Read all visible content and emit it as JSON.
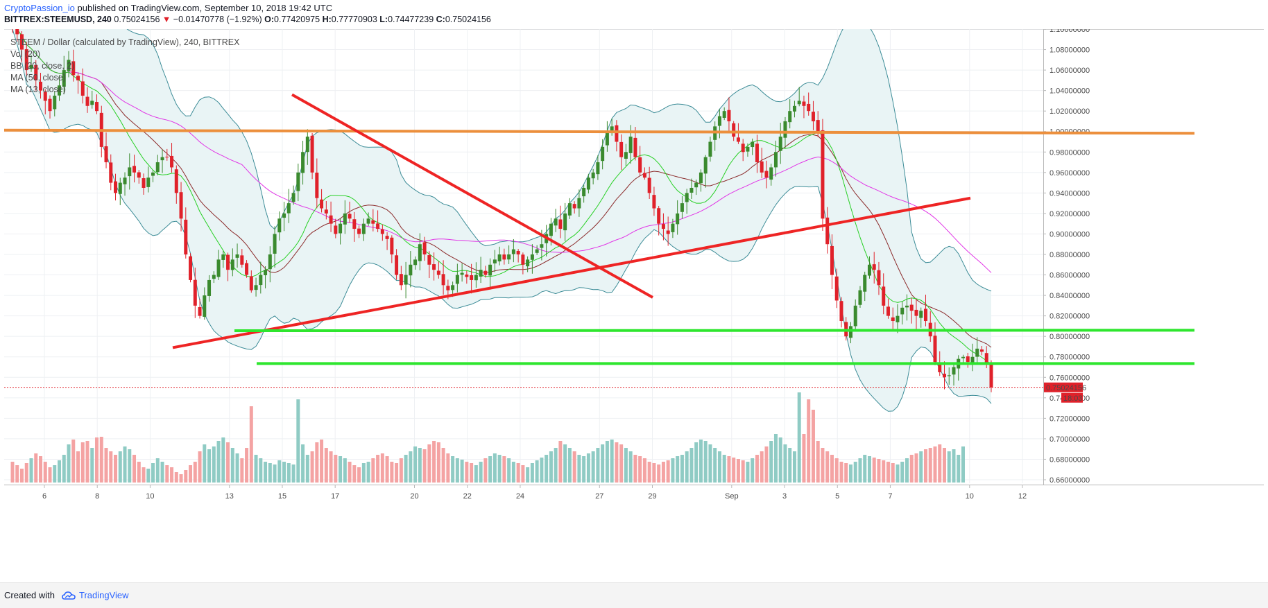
{
  "header": {
    "publisher": "CryptoPassion_io",
    "published_text": " published on TradingView.com, September 10, 2018 19:42 UTC",
    "symbol_line": {
      "symbol": "BITTREX:STEEMUSD, 240",
      "last": "0.75024156",
      "change": "−0.01470778 (−1.92%)",
      "o_label": "O:",
      "o": "0.77420975",
      "h_label": "H:",
      "h": "0.77770903",
      "l_label": "L:",
      "l": "0.74477239",
      "c_label": "C:",
      "c": "0.75024156"
    }
  },
  "legend": {
    "title": "STEEM / Dollar (calculated by TradingView), 240, BITTREX",
    "studies": [
      "Vol (20)",
      "BB (20, close, 2)",
      "MA (50, close)",
      "MA (13, close)"
    ]
  },
  "footer": {
    "created_with": "Created with",
    "brand": "TradingView"
  },
  "colors": {
    "up": "#3a8a2e",
    "down": "#e0212a",
    "vol_up": "#8fcbc4",
    "vol_down": "#f4a3a3",
    "bb": "#3c8c97",
    "bb_fill": "#e9f4f5",
    "ma50": "#e135e6",
    "ma13": "#27d024",
    "ma20": "#8b2a2a",
    "orange": "#ec8f3c",
    "red_line": "#ee2424",
    "green_line": "#2ee62e"
  },
  "chart_data": {
    "type": "candlestick",
    "title": "STEEM / Dollar (calculated by TradingView), 240, BITTREX",
    "price_axis": {
      "labels": [
        "1.10000000",
        "1.08000000",
        "1.06000000",
        "1.04000000",
        "1.02000000",
        "1.00000000",
        "0.98000000",
        "0.96000000",
        "0.94000000",
        "0.92000000",
        "0.90000000",
        "0.88000000",
        "0.86000000",
        "0.84000000",
        "0.82000000",
        "0.80000000",
        "0.78000000",
        "0.76000000",
        "0.74000000",
        "0.72000000",
        "0.70000000",
        "0.68000000",
        "0.66000000"
      ],
      "values": [
        1.1,
        1.08,
        1.06,
        1.04,
        1.02,
        1.0,
        0.98,
        0.96,
        0.94,
        0.92,
        0.9,
        0.88,
        0.86,
        0.84,
        0.82,
        0.8,
        0.78,
        0.76,
        0.74,
        0.72,
        0.7,
        0.68,
        0.66
      ],
      "last_price_label": "0.75024156",
      "countdown_label": "18:03"
    },
    "time_axis": {
      "labels": [
        "6",
        "8",
        "10",
        "13",
        "15",
        "17",
        "20",
        "22",
        "24",
        "27",
        "29",
        "Sep",
        "3",
        "5",
        "7",
        "10",
        "12"
      ],
      "days": [
        6,
        8,
        10,
        13,
        15,
        17,
        20,
        22,
        24,
        27,
        29,
        32,
        34,
        36,
        38,
        41,
        43
      ]
    },
    "closes": [
      1.105,
      1.095,
      1.08,
      1.06,
      1.065,
      1.05,
      1.04,
      1.03,
      1.02,
      1.035,
      1.045,
      1.06,
      1.07,
      1.055,
      1.05,
      1.035,
      1.025,
      1.03,
      1.02,
      0.985,
      0.97,
      0.95,
      0.94,
      0.95,
      0.955,
      0.965,
      0.96,
      0.955,
      0.945,
      0.955,
      0.96,
      0.97,
      0.975,
      0.975,
      0.965,
      0.94,
      0.915,
      0.88,
      0.855,
      0.83,
      0.82,
      0.84,
      0.855,
      0.86,
      0.875,
      0.88,
      0.865,
      0.875,
      0.88,
      0.87,
      0.86,
      0.845,
      0.85,
      0.86,
      0.865,
      0.88,
      0.9,
      0.915,
      0.92,
      0.93,
      0.94,
      0.96,
      0.98,
      0.995,
      0.96,
      0.935,
      0.925,
      0.92,
      0.91,
      0.9,
      0.91,
      0.92,
      0.915,
      0.905,
      0.9,
      0.91,
      0.915,
      0.91,
      0.905,
      0.9,
      0.895,
      0.88,
      0.86,
      0.85,
      0.86,
      0.87,
      0.875,
      0.89,
      0.88,
      0.87,
      0.865,
      0.86,
      0.85,
      0.845,
      0.85,
      0.86,
      0.862,
      0.858,
      0.855,
      0.86,
      0.865,
      0.86,
      0.87,
      0.875,
      0.88,
      0.875,
      0.88,
      0.885,
      0.88,
      0.87,
      0.875,
      0.88,
      0.885,
      0.89,
      0.9,
      0.91,
      0.915,
      0.905,
      0.92,
      0.93,
      0.925,
      0.935,
      0.945,
      0.955,
      0.96,
      0.97,
      0.985,
      1.0,
      1.005,
      0.99,
      0.975,
      0.98,
      0.995,
      0.975,
      0.96,
      0.955,
      0.94,
      0.925,
      0.91,
      0.905,
      0.9,
      0.91,
      0.92,
      0.93,
      0.94,
      0.945,
      0.95,
      0.96,
      0.975,
      0.99,
      1.005,
      1.015,
      1.02,
      1.01,
      0.995,
      0.99,
      0.98,
      0.985,
      0.99,
      0.97,
      0.96,
      0.955,
      0.965,
      0.98,
      0.995,
      1.01,
      1.02,
      1.025,
      1.03,
      1.025,
      1.02,
      1.01,
      1.0,
      0.915,
      0.89,
      0.86,
      0.835,
      0.815,
      0.8,
      0.81,
      0.83,
      0.845,
      0.86,
      0.87,
      0.865,
      0.85,
      0.83,
      0.82,
      0.815,
      0.82,
      0.828,
      0.83,
      0.825,
      0.82,
      0.825,
      0.815,
      0.8,
      0.775,
      0.765,
      0.76,
      0.762,
      0.77,
      0.778,
      0.78,
      0.775,
      0.78,
      0.788,
      0.785,
      0.7742,
      0.7502
    ],
    "volumes": [
      0.3,
      0.25,
      0.2,
      0.28,
      0.35,
      0.42,
      0.38,
      0.3,
      0.22,
      0.25,
      0.32,
      0.4,
      0.55,
      0.62,
      0.45,
      0.58,
      0.6,
      0.5,
      0.65,
      0.66,
      0.5,
      0.45,
      0.4,
      0.45,
      0.52,
      0.48,
      0.4,
      0.3,
      0.22,
      0.2,
      0.28,
      0.35,
      0.3,
      0.25,
      0.22,
      0.15,
      0.12,
      0.18,
      0.25,
      0.3,
      0.45,
      0.55,
      0.48,
      0.52,
      0.6,
      0.65,
      0.58,
      0.5,
      0.42,
      0.35,
      0.5,
      1.1,
      0.4,
      0.35,
      0.3,
      0.28,
      0.26,
      0.32,
      0.3,
      0.28,
      0.26,
      1.2,
      0.55,
      0.4,
      0.45,
      0.58,
      0.62,
      0.5,
      0.45,
      0.4,
      0.38,
      0.35,
      0.3,
      0.25,
      0.22,
      0.28,
      0.3,
      0.35,
      0.4,
      0.42,
      0.38,
      0.3,
      0.28,
      0.35,
      0.4,
      0.45,
      0.52,
      0.5,
      0.48,
      0.55,
      0.6,
      0.58,
      0.5,
      0.42,
      0.38,
      0.35,
      0.33,
      0.3,
      0.28,
      0.25,
      0.3,
      0.35,
      0.38,
      0.42,
      0.4,
      0.38,
      0.35,
      0.3,
      0.28,
      0.25,
      0.22,
      0.28,
      0.32,
      0.36,
      0.4,
      0.45,
      0.5,
      0.6,
      0.55,
      0.5,
      0.45,
      0.4,
      0.38,
      0.42,
      0.45,
      0.5,
      0.55,
      0.6,
      0.62,
      0.58,
      0.55,
      0.5,
      0.45,
      0.4,
      0.38,
      0.35,
      0.3,
      0.28,
      0.26,
      0.3,
      0.32,
      0.35,
      0.38,
      0.4,
      0.45,
      0.5,
      0.58,
      0.62,
      0.6,
      0.55,
      0.5,
      0.45,
      0.4,
      0.38,
      0.36,
      0.34,
      0.32,
      0.3,
      0.35,
      0.4,
      0.45,
      0.52,
      0.6,
      0.7,
      0.65,
      0.55,
      0.5,
      0.45,
      1.3,
      0.7,
      1.2,
      1.05,
      0.6,
      0.5,
      0.45,
      0.4,
      0.35,
      0.3,
      0.28,
      0.26,
      0.3,
      0.35,
      0.4,
      0.38,
      0.36,
      0.34,
      0.32,
      0.3,
      0.28,
      0.26,
      0.3,
      0.35,
      0.4,
      0.42,
      0.45,
      0.48,
      0.5,
      0.52,
      0.55,
      0.5,
      0.45,
      0.48,
      0.4,
      0.52
    ]
  }
}
